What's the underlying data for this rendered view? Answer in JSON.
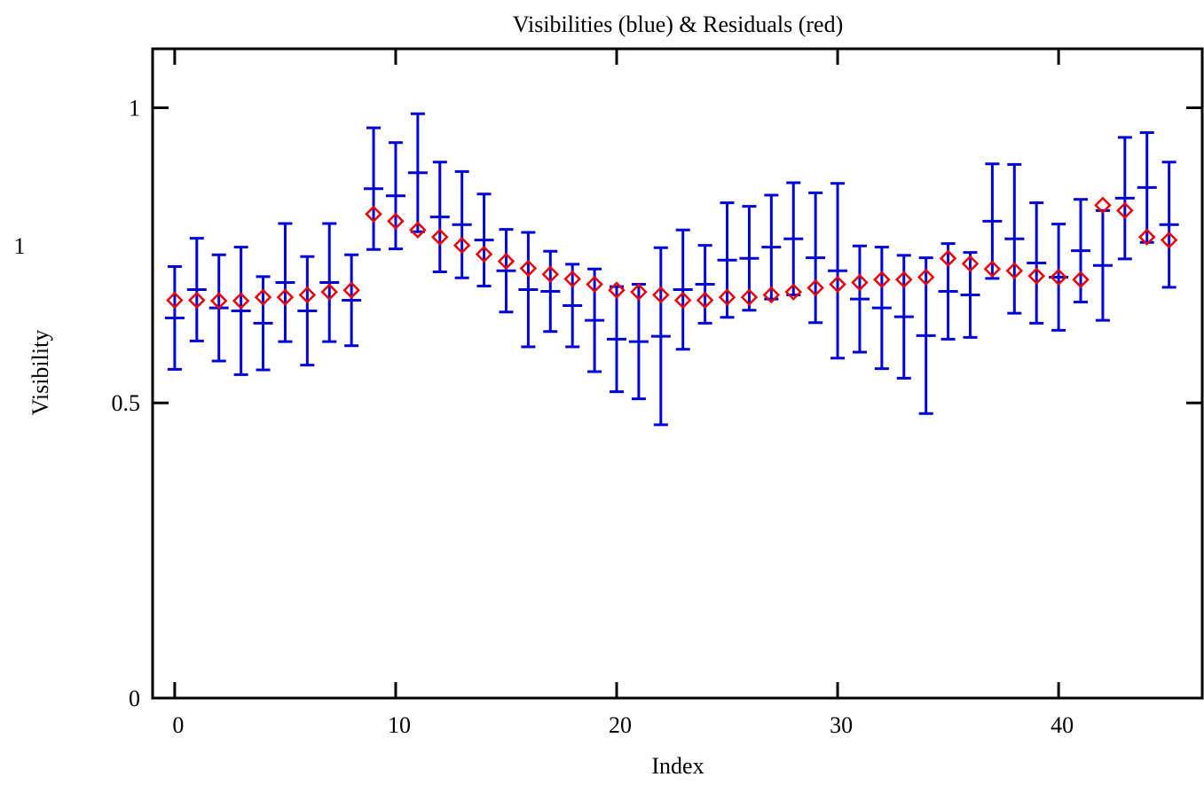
{
  "chart_data": {
    "type": "errorbar",
    "title": "Visibilities (blue) & Residuals (red)",
    "x_label": "Index",
    "y_label": "Visibility",
    "y_label_extra": "1",
    "x": [
      0,
      1,
      2,
      3,
      4,
      5,
      6,
      7,
      8,
      9,
      10,
      11,
      12,
      13,
      14,
      15,
      16,
      17,
      18,
      19,
      20,
      21,
      22,
      23,
      24,
      25,
      26,
      27,
      28,
      29,
      30,
      31,
      32,
      33,
      34,
      35,
      36,
      37,
      38,
      39,
      40,
      41,
      42,
      43,
      44,
      45
    ],
    "values": [
      0.644,
      0.692,
      0.661,
      0.656,
      0.635,
      0.704,
      0.656,
      0.704,
      0.674,
      0.863,
      0.851,
      0.89,
      0.815,
      0.802,
      0.776,
      0.724,
      0.692,
      0.689,
      0.665,
      0.64,
      0.608,
      0.604,
      0.613,
      0.692,
      0.701,
      0.742,
      0.745,
      0.764,
      0.778,
      0.746,
      0.724,
      0.676,
      0.661,
      0.646,
      0.614,
      0.689,
      0.683,
      0.808,
      0.778,
      0.737,
      0.713,
      0.758,
      0.733,
      0.847,
      0.865,
      0.802
    ],
    "errors": [
      0.087,
      0.087,
      0.09,
      0.108,
      0.079,
      0.1,
      0.092,
      0.1,
      0.077,
      0.103,
      0.09,
      0.1,
      0.093,
      0.09,
      0.078,
      0.07,
      0.097,
      0.068,
      0.07,
      0.087,
      0.089,
      0.097,
      0.15,
      0.101,
      0.066,
      0.097,
      0.088,
      0.088,
      0.095,
      0.11,
      0.148,
      0.09,
      0.103,
      0.104,
      0.132,
      0.081,
      0.072,
      0.097,
      0.126,
      0.102,
      0.09,
      0.087,
      0.093,
      0.103,
      0.093,
      0.106
    ],
    "color": "#0000dd",
    "model_values": [
      0.674,
      0.674,
      0.673,
      0.673,
      0.679,
      0.679,
      0.683,
      0.688,
      0.691,
      0.82,
      0.808,
      0.793,
      0.781,
      0.767,
      0.752,
      0.74,
      0.728,
      0.718,
      0.71,
      0.701,
      0.691,
      0.688,
      0.683,
      0.674,
      0.674,
      0.679,
      0.679,
      0.683,
      0.688,
      0.695,
      0.701,
      0.704,
      0.709,
      0.709,
      0.713,
      0.745,
      0.736,
      0.727,
      0.724,
      0.715,
      0.713,
      0.709,
      0.835,
      0.826,
      0.781,
      0.776
    ],
    "model_color": "#ee0000",
    "xlim": [
      -1,
      46.5
    ],
    "ylim": [
      0,
      1.1
    ],
    "xticks": [
      0,
      10,
      20,
      30,
      40
    ],
    "yticks": [
      0,
      0.5,
      1
    ]
  }
}
